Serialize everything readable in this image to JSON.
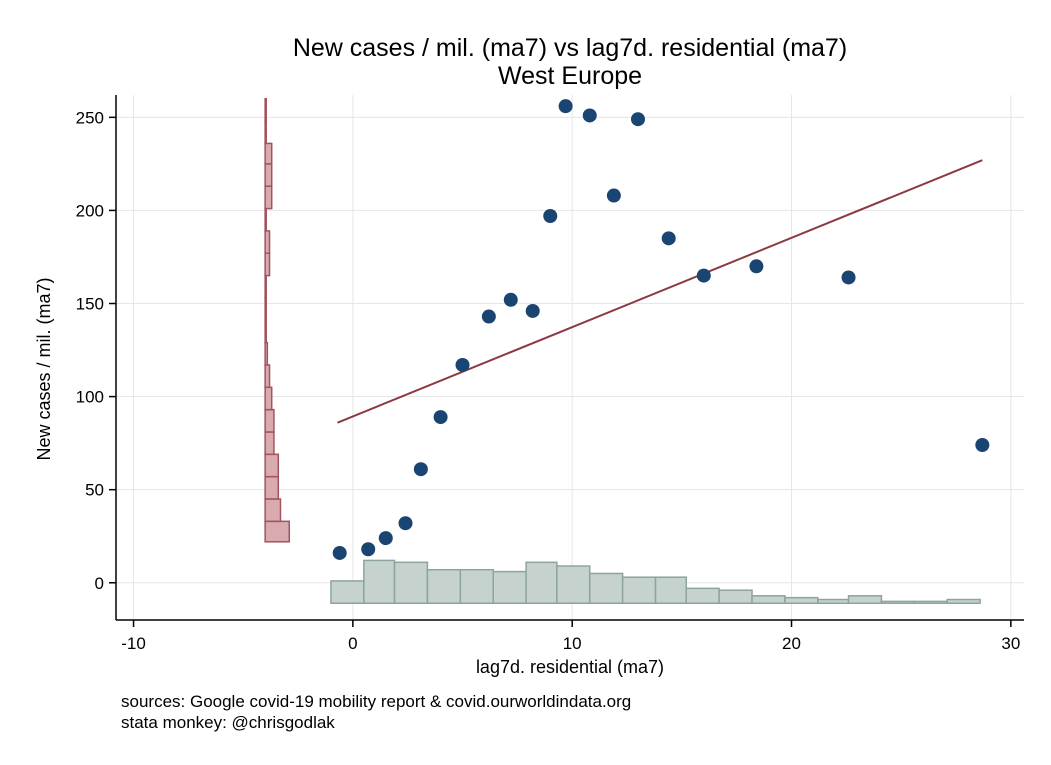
{
  "chart_data": {
    "type": "scatter",
    "title": "New cases / mil. (ma7) vs lag7d. residential (ma7)",
    "subtitle": "West Europe",
    "xlabel": "lag7d. residential (ma7)",
    "ylabel": "New cases / mil. (ma7)",
    "xlim": [
      -10.8,
      30.6
    ],
    "ylim": [
      -20,
      262
    ],
    "x_ticks": [
      -10,
      0,
      10,
      20,
      30
    ],
    "y_ticks": [
      0,
      50,
      100,
      150,
      200,
      250
    ],
    "x_tick_labels": [
      "-10",
      "0",
      "10",
      "20",
      "30"
    ],
    "y_tick_labels": [
      "0",
      "50",
      "100",
      "150",
      "200",
      "250"
    ],
    "grid": true,
    "colors": {
      "points": "#1a4472",
      "fit_line": "#8b3a42",
      "y_hist_fill": "#d9aab0",
      "y_hist_edge": "#a2545e",
      "x_hist_fill": "#c5d2cd",
      "x_hist_edge": "#8ea59c",
      "grid": "#e6e6e6"
    },
    "points": [
      {
        "x": -0.6,
        "y": 16
      },
      {
        "x": 0.7,
        "y": 18
      },
      {
        "x": 1.5,
        "y": 24
      },
      {
        "x": 2.4,
        "y": 32
      },
      {
        "x": 3.1,
        "y": 61
      },
      {
        "x": 4.0,
        "y": 89
      },
      {
        "x": 5.0,
        "y": 117
      },
      {
        "x": 6.2,
        "y": 143
      },
      {
        "x": 7.2,
        "y": 152
      },
      {
        "x": 8.2,
        "y": 146
      },
      {
        "x": 9.0,
        "y": 197
      },
      {
        "x": 9.7,
        "y": 256
      },
      {
        "x": 10.8,
        "y": 251
      },
      {
        "x": 11.9,
        "y": 208
      },
      {
        "x": 13.0,
        "y": 249
      },
      {
        "x": 14.4,
        "y": 185
      },
      {
        "x": 16.0,
        "y": 165
      },
      {
        "x": 18.4,
        "y": 170
      },
      {
        "x": 22.6,
        "y": 164
      },
      {
        "x": 28.7,
        "y": 74
      }
    ],
    "fit_line": {
      "x": [
        -0.7,
        28.7
      ],
      "y": [
        86,
        227
      ]
    },
    "x_histogram": {
      "baseline_y": -11,
      "bins": [
        {
          "from": -1.0,
          "to": 0.5,
          "top": 1
        },
        {
          "from": 0.5,
          "to": 1.9,
          "top": 12
        },
        {
          "from": 1.9,
          "to": 3.4,
          "top": 11
        },
        {
          "from": 3.4,
          "to": 4.9,
          "top": 7
        },
        {
          "from": 4.9,
          "to": 6.4,
          "top": 7
        },
        {
          "from": 6.4,
          "to": 7.9,
          "top": 6
        },
        {
          "from": 7.9,
          "to": 9.3,
          "top": 11
        },
        {
          "from": 9.3,
          "to": 10.8,
          "top": 9
        },
        {
          "from": 10.8,
          "to": 12.3,
          "top": 5
        },
        {
          "from": 12.3,
          "to": 13.8,
          "top": 3
        },
        {
          "from": 13.8,
          "to": 15.2,
          "top": 3
        },
        {
          "from": 15.2,
          "to": 16.7,
          "top": -3
        },
        {
          "from": 16.7,
          "to": 18.2,
          "top": -4
        },
        {
          "from": 18.2,
          "to": 19.7,
          "top": -7
        },
        {
          "from": 19.7,
          "to": 21.2,
          "top": -8
        },
        {
          "from": 21.2,
          "to": 22.6,
          "top": -9
        },
        {
          "from": 22.6,
          "to": 24.1,
          "top": -7
        },
        {
          "from": 24.1,
          "to": 25.6,
          "top": -10
        },
        {
          "from": 25.6,
          "to": 27.1,
          "top": -10
        },
        {
          "from": 27.1,
          "to": 28.6,
          "top": -9
        }
      ]
    },
    "y_histogram": {
      "baseline_x": -4.0,
      "bins": [
        {
          "from": 22,
          "to": 33,
          "right": -2.9
        },
        {
          "from": 33,
          "to": 45,
          "right": -3.3
        },
        {
          "from": 45,
          "to": 57,
          "right": -3.4
        },
        {
          "from": 57,
          "to": 69,
          "right": -3.4
        },
        {
          "from": 69,
          "to": 81,
          "right": -3.6
        },
        {
          "from": 81,
          "to": 93,
          "right": -3.6
        },
        {
          "from": 93,
          "to": 105,
          "right": -3.7
        },
        {
          "from": 105,
          "to": 117,
          "right": -3.8
        },
        {
          "from": 117,
          "to": 129,
          "right": -3.9
        },
        {
          "from": 129,
          "to": 141,
          "right": -3.95
        },
        {
          "from": 141,
          "to": 153,
          "right": -3.95
        },
        {
          "from": 153,
          "to": 165,
          "right": -3.95
        },
        {
          "from": 165,
          "to": 177,
          "right": -3.8
        },
        {
          "from": 177,
          "to": 189,
          "right": -3.8
        },
        {
          "from": 189,
          "to": 201,
          "right": -3.95
        },
        {
          "from": 201,
          "to": 213,
          "right": -3.7
        },
        {
          "from": 213,
          "to": 225,
          "right": -3.7
        },
        {
          "from": 225,
          "to": 236,
          "right": -3.7
        },
        {
          "from": 236,
          "to": 248,
          "right": -3.95
        },
        {
          "from": 248,
          "to": 260,
          "right": -3.95
        }
      ]
    }
  },
  "notes": {
    "source": "sources: Google covid-19 mobility report & covid.ourworldindata.org",
    "credit": "stata monkey: @chrisgodlak"
  }
}
